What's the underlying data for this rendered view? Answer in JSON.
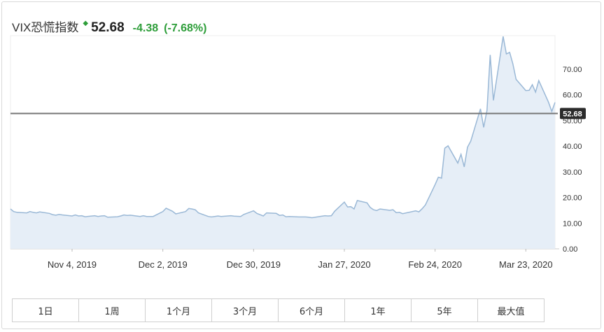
{
  "quote": {
    "title": "VIX恐慌指数",
    "price": "52.68",
    "change": "-4.38",
    "change_pct": "(-7.68%)",
    "change_color": "#2e9e3a"
  },
  "ranges": [
    "1日",
    "1周",
    "1个月",
    "3个月",
    "6个月",
    "1年",
    "5年",
    "最大值"
  ],
  "chart_data": {
    "type": "area",
    "title": "",
    "xlabel": "",
    "ylabel": "",
    "y_axis_position": "right",
    "ylim": [
      0,
      83
    ],
    "yticks": [
      "0.00",
      "10.00",
      "20.00",
      "30.00",
      "40.00",
      "50.00",
      "60.00",
      "70.00"
    ],
    "xticks": [
      "Nov 4, 2019",
      "Dec 2, 2019",
      "Dec 30, 2019",
      "Jan 27, 2020",
      "Feb 24, 2020",
      "Mar 23, 2020"
    ],
    "xtick_dates": [
      "2019-11-04",
      "2019-12-02",
      "2019-12-30",
      "2020-01-27",
      "2020-02-24",
      "2020-03-23"
    ],
    "current_value": 52.68,
    "current_label": "52.68",
    "line_color": "#9ab8d6",
    "fill_color": "#e6eef7",
    "series": [
      {
        "x": [
          "2019-10-16",
          "2019-10-17",
          "2019-10-18",
          "2019-10-21",
          "2019-10-22",
          "2019-10-23",
          "2019-10-24",
          "2019-10-25",
          "2019-10-28",
          "2019-10-29",
          "2019-10-30",
          "2019-10-31",
          "2019-11-01",
          "2019-11-04",
          "2019-11-05",
          "2019-11-06",
          "2019-11-07",
          "2019-11-08",
          "2019-11-11",
          "2019-11-12",
          "2019-11-13",
          "2019-11-14",
          "2019-11-15",
          "2019-11-18",
          "2019-11-19",
          "2019-11-20",
          "2019-11-21",
          "2019-11-22",
          "2019-11-25",
          "2019-11-26",
          "2019-11-27",
          "2019-11-29",
          "2019-12-02",
          "2019-12-03",
          "2019-12-04",
          "2019-12-05",
          "2019-12-06",
          "2019-12-09",
          "2019-12-10",
          "2019-12-11",
          "2019-12-12",
          "2019-12-13",
          "2019-12-16",
          "2019-12-17",
          "2019-12-18",
          "2019-12-19",
          "2019-12-20",
          "2019-12-23",
          "2019-12-24",
          "2019-12-26",
          "2019-12-27",
          "2019-12-30",
          "2019-12-31",
          "2020-01-02",
          "2020-01-03",
          "2020-01-06",
          "2020-01-07",
          "2020-01-08",
          "2020-01-09",
          "2020-01-10",
          "2020-01-13",
          "2020-01-14",
          "2020-01-15",
          "2020-01-16",
          "2020-01-17",
          "2020-01-21",
          "2020-01-22",
          "2020-01-23",
          "2020-01-24",
          "2020-01-27",
          "2020-01-28",
          "2020-01-29",
          "2020-01-30",
          "2020-01-31",
          "2020-02-03",
          "2020-02-04",
          "2020-02-05",
          "2020-02-06",
          "2020-02-07",
          "2020-02-10",
          "2020-02-11",
          "2020-02-12",
          "2020-02-13",
          "2020-02-14",
          "2020-02-18",
          "2020-02-19",
          "2020-02-20",
          "2020-02-21",
          "2020-02-24",
          "2020-02-25",
          "2020-02-26",
          "2020-02-27",
          "2020-02-28",
          "2020-03-02",
          "2020-03-03",
          "2020-03-04",
          "2020-03-05",
          "2020-03-06",
          "2020-03-09",
          "2020-03-10",
          "2020-03-11",
          "2020-03-12",
          "2020-03-13",
          "2020-03-16",
          "2020-03-17",
          "2020-03-18",
          "2020-03-19",
          "2020-03-20",
          "2020-03-23",
          "2020-03-24",
          "2020-03-25",
          "2020-03-26",
          "2020-03-27",
          "2020-03-30",
          "2020-03-31",
          "2020-04-01"
        ],
        "values": [
          15.5,
          14.5,
          14.2,
          14.0,
          14.5,
          14.2,
          14.0,
          14.4,
          13.8,
          13.3,
          13.1,
          13.4,
          13.2,
          12.8,
          13.2,
          12.8,
          12.9,
          12.5,
          12.9,
          12.6,
          12.8,
          12.9,
          12.3,
          12.5,
          12.8,
          13.2,
          13.0,
          13.1,
          12.6,
          12.9,
          12.6,
          12.6,
          14.5,
          15.8,
          15.2,
          14.6,
          13.6,
          14.5,
          15.7,
          15.5,
          15.2,
          14.0,
          12.6,
          12.4,
          12.6,
          12.8,
          12.6,
          12.9,
          12.7,
          12.6,
          13.4,
          14.8,
          13.8,
          12.8,
          14.0,
          13.8,
          13.0,
          13.2,
          12.5,
          12.6,
          12.4,
          12.4,
          12.4,
          12.3,
          12.1,
          12.9,
          12.8,
          12.9,
          14.6,
          18.2,
          16.3,
          16.4,
          15.5,
          18.8,
          17.9,
          16.1,
          15.2,
          14.9,
          15.5,
          15.0,
          15.2,
          14.1,
          14.2,
          13.7,
          14.8,
          14.4,
          15.6,
          17.1,
          25.0,
          27.9,
          27.5,
          39.2,
          40.1,
          33.4,
          36.8,
          31.9,
          39.6,
          41.9,
          54.5,
          47.3,
          53.9,
          75.5,
          57.8,
          82.7,
          75.9,
          76.5,
          72.0,
          66.0,
          61.6,
          61.7,
          63.9,
          61.0,
          65.5,
          57.1,
          53.5,
          57.0
        ]
      }
    ]
  }
}
